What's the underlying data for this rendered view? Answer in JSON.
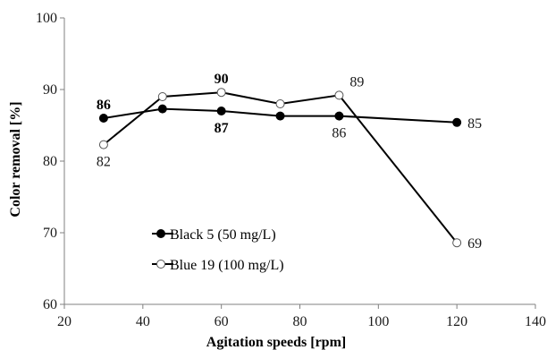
{
  "chart_data": {
    "type": "line",
    "xlabel": "Agitation speeds [rpm]",
    "ylabel": "Color removal [%]",
    "xlim": [
      20,
      140
    ],
    "ylim": [
      60,
      100
    ],
    "xticks": [
      "20",
      "40",
      "60",
      "80",
      "100",
      "120",
      "140"
    ],
    "yticks": [
      "60",
      "70",
      "80",
      "90",
      "100"
    ],
    "grid": false,
    "legend_position": "lower-left",
    "series": [
      {
        "name": "Black 5 (50 mg/L)",
        "marker": "filled-circle",
        "color": "#000000",
        "x": [
          30,
          45,
          60,
          75,
          90,
          120
        ],
        "y": [
          86,
          87.3,
          87,
          86.3,
          86.3,
          85.4
        ],
        "labels": [
          {
            "index": 0,
            "text": "86",
            "bold": true,
            "pos": "above"
          },
          {
            "index": 2,
            "text": "87",
            "bold": true,
            "pos": "below"
          },
          {
            "index": 4,
            "text": "86",
            "bold": false,
            "pos": "below"
          },
          {
            "index": 5,
            "text": "85",
            "bold": false,
            "pos": "right"
          }
        ]
      },
      {
        "name": "Blue 19 (100 mg/L)",
        "marker": "open-circle",
        "color": "#000000",
        "x": [
          30,
          45,
          60,
          75,
          90,
          120
        ],
        "y": [
          82.3,
          89,
          89.6,
          88,
          89.2,
          68.6
        ],
        "labels": [
          {
            "index": 0,
            "text": "82",
            "bold": false,
            "pos": "below"
          },
          {
            "index": 2,
            "text": "90",
            "bold": true,
            "pos": "above"
          },
          {
            "index": 4,
            "text": "89",
            "bold": false,
            "pos": "above-right"
          },
          {
            "index": 5,
            "text": "69",
            "bold": false,
            "pos": "right"
          }
        ]
      }
    ]
  }
}
